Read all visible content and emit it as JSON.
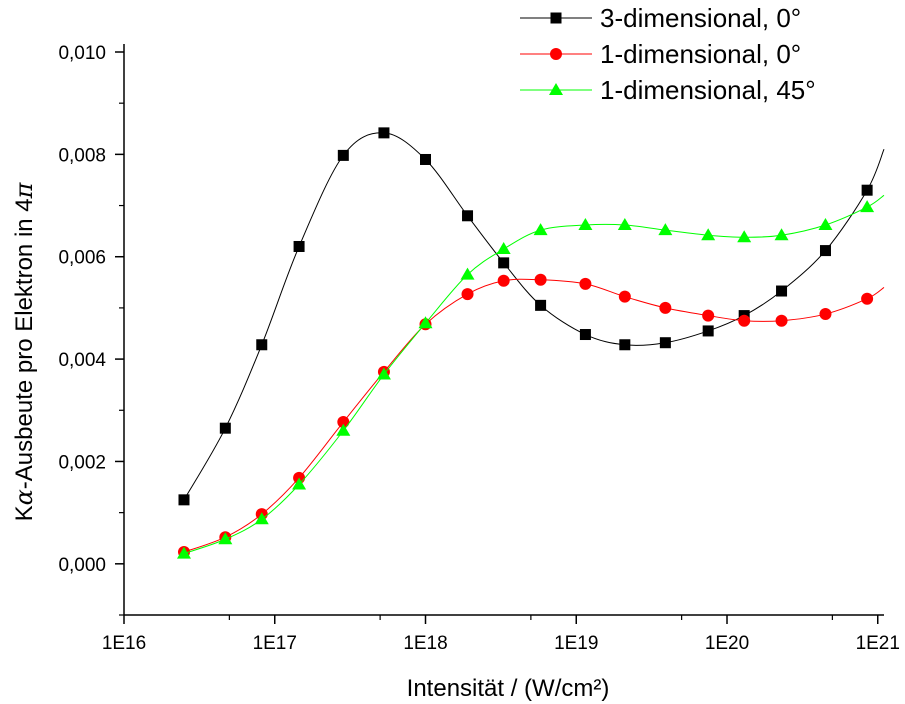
{
  "chart_data": {
    "type": "line",
    "x_scale": "log",
    "xlim": [
      1e+16,
      1.1e+21
    ],
    "ylim": [
      -0.001,
      0.01
    ],
    "grid": false,
    "legend_position": "top-right",
    "xlabel": "Intensität / (W/cm²)",
    "ylabel_parts": [
      "K",
      "α",
      "-Ausbeute pro Elektron in 4",
      "π"
    ],
    "x_ticks": [
      {
        "value": 1e+16,
        "label": "1E16"
      },
      {
        "value": 1e+17,
        "label": "1E17"
      },
      {
        "value": 1e+18,
        "label": "1E18"
      },
      {
        "value": 1e+19,
        "label": "1E19"
      },
      {
        "value": 1e+20,
        "label": "1E20"
      },
      {
        "value": 1e+21,
        "label": "1E21"
      }
    ],
    "y_ticks": [
      {
        "value": 0.0,
        "label": "0,000"
      },
      {
        "value": 0.002,
        "label": "0,002"
      },
      {
        "value": 0.004,
        "label": "0,004"
      },
      {
        "value": 0.006,
        "label": "0,006"
      },
      {
        "value": 0.008,
        "label": "0,008"
      },
      {
        "value": 0.01,
        "label": "0,010"
      }
    ],
    "series": [
      {
        "name": "3-dimensional, 0°",
        "color": "#000000",
        "marker": "square",
        "x": [
          2.5e+16,
          4.7e+16,
          8.2e+16,
          1.45e+17,
          2.85e+17,
          5.3e+17,
          1e+18,
          1.9e+18,
          3.3e+18,
          5.8e+18,
          1.15e+19,
          2.1e+19,
          3.9e+19,
          7.5e+19,
          1.3e+20,
          2.3e+20,
          4.5e+20,
          8.5e+20
        ],
        "y": [
          0.00125,
          0.00265,
          0.00428,
          0.0062,
          0.00798,
          0.00842,
          0.0079,
          0.0068,
          0.00588,
          0.00505,
          0.00448,
          0.00428,
          0.00432,
          0.00455,
          0.00485,
          0.00533,
          0.00612,
          0.0073
        ],
        "extends_to_x": 1.1e+21,
        "extends_to_y": 0.0081
      },
      {
        "name": "1-dimensional, 0°",
        "color": "#ff0000",
        "marker": "circle",
        "x": [
          2.5e+16,
          4.7e+16,
          8.2e+16,
          1.45e+17,
          2.85e+17,
          5.3e+17,
          1e+18,
          1.9e+18,
          3.3e+18,
          5.8e+18,
          1.15e+19,
          2.1e+19,
          3.9e+19,
          7.5e+19,
          1.3e+20,
          2.3e+20,
          4.5e+20,
          8.5e+20
        ],
        "y": [
          0.00023,
          0.00052,
          0.00097,
          0.00168,
          0.00277,
          0.00375,
          0.00468,
          0.00527,
          0.00553,
          0.00555,
          0.00547,
          0.00522,
          0.005,
          0.00485,
          0.00475,
          0.00475,
          0.00488,
          0.00518
        ],
        "extends_to_x": 1.1e+21,
        "extends_to_y": 0.0054
      },
      {
        "name": "1-dimensional, 45°",
        "color": "#00ff00",
        "marker": "triangle",
        "x": [
          2.5e+16,
          4.7e+16,
          8.2e+16,
          1.45e+17,
          2.85e+17,
          5.3e+17,
          1e+18,
          1.9e+18,
          3.3e+18,
          5.8e+18,
          1.15e+19,
          2.1e+19,
          3.9e+19,
          7.5e+19,
          1.3e+20,
          2.3e+20,
          4.5e+20,
          8.5e+20
        ],
        "y": [
          0.0002,
          0.00048,
          0.00087,
          0.00155,
          0.0026,
          0.0037,
          0.0047,
          0.00565,
          0.00615,
          0.00652,
          0.00662,
          0.00662,
          0.00652,
          0.00642,
          0.00638,
          0.00642,
          0.00662,
          0.00697
        ],
        "extends_to_x": 1.1e+21,
        "extends_to_y": 0.0072
      }
    ]
  }
}
